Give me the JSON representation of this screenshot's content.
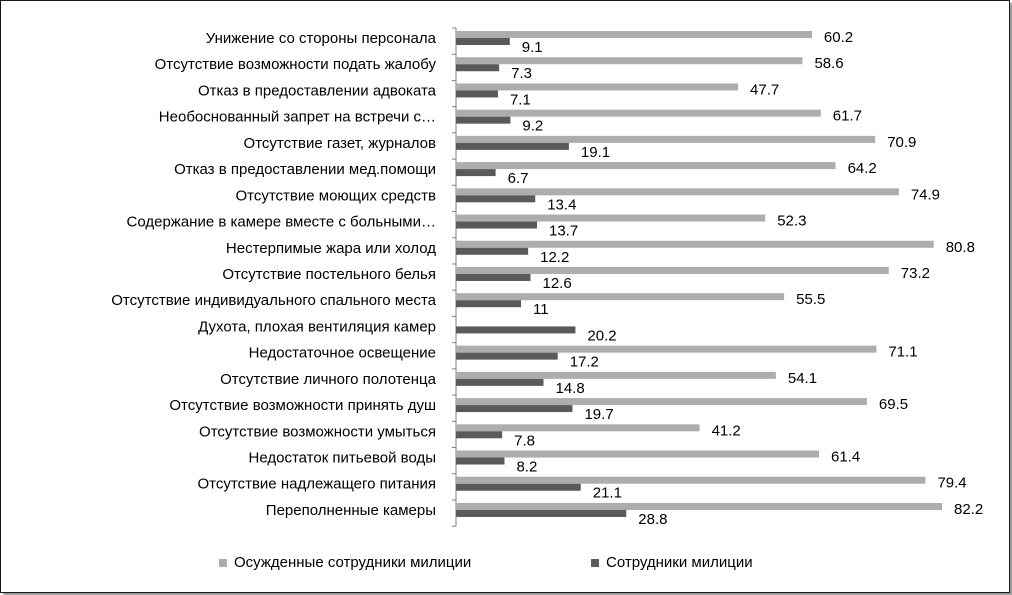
{
  "chart_data": {
    "type": "bar",
    "orientation": "horizontal",
    "xlim": [
      0,
      85
    ],
    "grid": false,
    "legend_position": "bottom",
    "categories": [
      "Унижение со стороны персонала",
      "Отсутствие возможности подать жалобу",
      "Отказ в предоставлении адвоката",
      "Необоснованный запрет на встречи с…",
      "Отсутствие газет, журналов",
      "Отказ в предоставлении мед.помощи",
      "Отсутствие моющих средств",
      "Содержание в камере вместе с больными…",
      "Нестерпимые жара или холод",
      "Отсутствие постельного белья",
      "Отсутствие индивидуального спального места",
      "Духота, плохая вентиляция камер",
      "Недостаточное освещение",
      "Отсутствие личного полотенца",
      "Отсутствие возможности принять душ",
      "Отсутствие возможности умыться",
      "Недостаток питьевой воды",
      "Отсутствие надлежащего питания",
      "Переполненные камеры"
    ],
    "series": [
      {
        "name": "Осужденные сотрудники милиции",
        "color": "#adadad",
        "values": [
          60.2,
          58.6,
          47.7,
          61.7,
          70.9,
          64.2,
          74.9,
          52.3,
          80.8,
          73.2,
          55.5,
          null,
          71.1,
          54.1,
          69.5,
          41.2,
          61.4,
          79.4,
          82.2
        ],
        "labels": [
          "60.2",
          "58.6",
          "47.7",
          "61.7",
          "70.9",
          "64.2",
          "74.9",
          "52.3",
          "80.8",
          "73.2",
          "55.5",
          "",
          "71.1",
          "54.1",
          "69.5",
          "41.2",
          "61.4",
          "79.4",
          "82.2"
        ]
      },
      {
        "name": "Сотрудники милиции",
        "color": "#5a5a5a",
        "values": [
          9.1,
          7.3,
          7.1,
          9.2,
          19.1,
          6.7,
          13.4,
          13.7,
          12.2,
          12.6,
          11,
          20.2,
          17.2,
          14.8,
          19.7,
          7.8,
          8.2,
          21.1,
          28.8
        ],
        "labels": [
          "9.1",
          "7.3",
          "7.1",
          "9.2",
          "19.1",
          "6.7",
          "13.4",
          "13.7",
          "12.2",
          "12.6",
          "11",
          "20.2",
          "17.2",
          "14.8",
          "19.7",
          "7.8",
          "8.2",
          "21.1",
          "28.8"
        ]
      }
    ]
  }
}
